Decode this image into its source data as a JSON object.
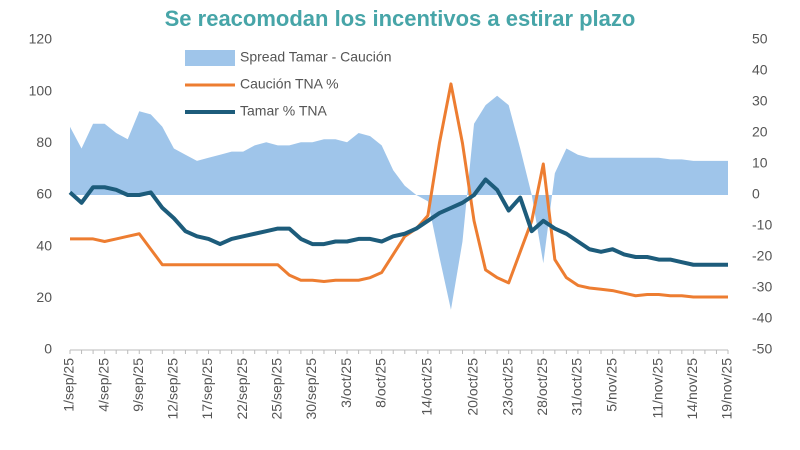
{
  "chart_data": {
    "type": "line",
    "title": "Se reacomodan los incentivos a estirar plazo",
    "categories": [
      "1/sep/25",
      null,
      null,
      "4/sep/25",
      null,
      null,
      "9/sep/25",
      null,
      null,
      "12/sep/25",
      null,
      null,
      "17/sep/25",
      null,
      null,
      "22/sep/25",
      null,
      null,
      "25/sep/25",
      null,
      null,
      "30/sep/25",
      null,
      null,
      "3/oct/25",
      null,
      null,
      "8/oct/25",
      null,
      null,
      null,
      "14/oct/25",
      null,
      null,
      null,
      "20/oct/25",
      null,
      null,
      "23/oct/25",
      null,
      null,
      "28/oct/25",
      null,
      null,
      "31/oct/25",
      null,
      null,
      "5/nov/25",
      null,
      null,
      null,
      "11/nov/25",
      null,
      null,
      "14/nov/25",
      null,
      null,
      "19/nov/25"
    ],
    "series": [
      {
        "name": "Spread Tamar - Caución",
        "type": "area",
        "axis": "y2",
        "color": "#9fc5ea",
        "values": [
          22,
          15,
          23,
          23,
          20,
          18,
          27,
          26,
          22,
          15,
          13,
          11,
          12,
          13,
          14,
          14,
          16,
          17,
          16,
          16,
          17,
          17,
          18,
          18,
          17,
          20,
          19,
          16,
          8,
          3,
          0,
          -2,
          -20,
          -37,
          -15,
          23,
          29,
          32,
          29,
          15,
          0,
          -22,
          7,
          15,
          13,
          12,
          12,
          12,
          12,
          12,
          12,
          12,
          11.5,
          11.5,
          11,
          11,
          11,
          11
        ]
      },
      {
        "name": "Caución TNA %",
        "type": "line",
        "color": "#ed7d31",
        "values": [
          43,
          43,
          43,
          42,
          43,
          44,
          45,
          39,
          33,
          33,
          33,
          33,
          33,
          33,
          33,
          33,
          33,
          33,
          33,
          29,
          27,
          27,
          26.5,
          27,
          27,
          27,
          28,
          30,
          37,
          44,
          47,
          52,
          80,
          103,
          80,
          50,
          31,
          28,
          26,
          38,
          50,
          72,
          35,
          28,
          25,
          24,
          23.5,
          23,
          22,
          21,
          21.5,
          21.5,
          21,
          21,
          20.5,
          20.5,
          20.5,
          20.5
        ]
      },
      {
        "name": "Tamar % TNA",
        "type": "line",
        "color": "#1d5c7b",
        "values": [
          61,
          57,
          63,
          63,
          62,
          60,
          60,
          61,
          55,
          51,
          46,
          44,
          43,
          41,
          43,
          44,
          45,
          46,
          47,
          47,
          43,
          41,
          41,
          42,
          42,
          43,
          43,
          42,
          44,
          45,
          47,
          50,
          53,
          55,
          57,
          60,
          66,
          62,
          54,
          59,
          46,
          50,
          47,
          45,
          42,
          39,
          38,
          39,
          37,
          36,
          36,
          35,
          35,
          34,
          33,
          33,
          33,
          33
        ]
      }
    ],
    "ylim": [
      0,
      120
    ],
    "yticks": [
      0,
      20,
      40,
      60,
      80,
      100,
      120
    ],
    "y2lim": [
      -50,
      50
    ],
    "y2ticks": [
      -50,
      -40,
      -30,
      -20,
      -10,
      0,
      10,
      20,
      30,
      40,
      50
    ],
    "grid": false
  }
}
